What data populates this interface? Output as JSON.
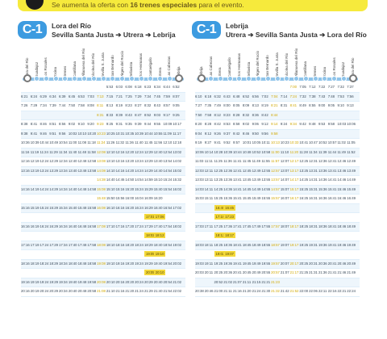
{
  "banner": {
    "pre": "Se aumenta la oferta con",
    "bold": "16 trenes especiales",
    "post": "para el evento."
  },
  "panels": [
    {
      "line": "C-1",
      "origin": "Lora del Río",
      "route": "Sevilla Santa Justa ➔ Utrera ➔ Lebrija",
      "stations": [
        "Lora del Río",
        "Guadajoz",
        "Los Rosales",
        "Tocina",
        "Brenes",
        "Cantillana",
        "Villanueva del Río",
        "Alcolea del Río",
        "Sevilla S. Justa",
        "San Bernardo",
        "Virgen del Rocío",
        "Bellavista",
        "Dos Hermanas",
        "Cantaelgallo",
        "Utrera",
        "Las Cabezas",
        "Lebrija"
      ],
      "rows": [
        [
          "",
          "",
          "",
          "",
          "",
          "",
          "",
          "",
          "",
          "5:53",
          "6:03",
          "6:08",
          "6:18",
          "6:23",
          "6:34",
          "6:44",
          "6:52"
        ],
        [
          "6:21",
          "6:24",
          "6:29",
          "6:34",
          "6:39",
          "6:45",
          "6:53",
          "7:03",
          "7:13",
          "7:15",
          "7:21",
          "7:25",
          "7:29",
          "7:34",
          "7:45",
          "7:59",
          "8:07"
        ],
        [
          "7:26",
          "7:29",
          "7:34",
          "7:39",
          "7:44",
          "7:50",
          "7:58",
          "8:08",
          "8:11",
          "8:13",
          "8:19",
          "8:23",
          "8:27",
          "8:32",
          "8:43",
          "8:57",
          "9:05"
        ],
        [
          "",
          "",
          "",
          "",
          "",
          "",
          "",
          "",
          "8:31",
          "8:33",
          "8:39",
          "8:43",
          "8:47",
          "8:52",
          "9:03",
          "9:17",
          "9:25"
        ],
        [
          "8:38",
          "8:41",
          "8:46",
          "8:51",
          "8:56",
          "9:02",
          "9:10",
          "9:20",
          "9:23",
          "9:25",
          "9:31",
          "9:35",
          "9:39",
          "9:44",
          "9:55",
          "10:09",
          "10:17"
        ],
        [
          "9:38",
          "9:41",
          "9:46",
          "9:51",
          "9:56",
          "10:02",
          "10:10",
          "10:20",
          "10:23",
          "10:25",
          "10:31",
          "10:35",
          "10:39",
          "10:44",
          "10:55",
          "11:09",
          "11:17"
        ],
        [
          "10:36",
          "10:39",
          "10:44",
          "10:49",
          "10:54",
          "11:00",
          "11:08",
          "11:18",
          "11:24",
          "11:26",
          "11:32",
          "11:36",
          "11:40",
          "11:45",
          "11:56",
          "12:10",
          "12:18"
        ],
        [
          "11:16",
          "11:19",
          "11:24",
          "11:29",
          "11:34",
          "11:40",
          "11:48",
          "11:58",
          "12:08",
          "12:10",
          "12:16",
          "12:20",
          "12:24",
          "12:29",
          "12:40",
          "12:54",
          "13:02"
        ],
        [
          "12:16",
          "12:19",
          "12:24",
          "12:29",
          "12:34",
          "12:40",
          "12:48",
          "12:58",
          "13:08",
          "13:10",
          "13:16",
          "13:20",
          "13:24",
          "13:29",
          "13:40",
          "13:54",
          "14:02"
        ],
        [
          "13:16",
          "13:19",
          "13:24",
          "13:29",
          "13:34",
          "13:40",
          "13:48",
          "13:58",
          "14:08",
          "14:10",
          "14:16",
          "14:20",
          "14:24",
          "14:29",
          "14:40",
          "14:54",
          "15:02"
        ],
        [
          "",
          "",
          "",
          "",
          "",
          "",
          "",
          "",
          "14:38",
          "14:40",
          "14:46",
          "14:50",
          "14:54",
          "14:59",
          "15:10",
          "15:24",
          "15:32"
        ],
        [
          "14:16",
          "14:19",
          "14:24",
          "14:29",
          "14:34",
          "14:40",
          "14:48",
          "14:58",
          "15:08",
          "15:10",
          "15:16",
          "15:20",
          "15:24",
          "15:29",
          "15:40",
          "15:54",
          "16:02"
        ],
        [
          "",
          "",
          "",
          "",
          "",
          "",
          "",
          "",
          "15:48",
          "15:50",
          "15:56",
          "16:00",
          "16:04",
          "16:09",
          "16:20",
          "",
          ""
        ],
        [
          "15:16",
          "15:19",
          "15:24",
          "15:29",
          "15:34",
          "15:40",
          "15:48",
          "15:58",
          "16:08",
          "16:10",
          "16:16",
          "16:20",
          "16:24",
          "16:29",
          "16:40",
          "16:54",
          "17:02"
        ],
        [
          "",
          "",
          "",
          "",
          "",
          "",
          "",
          "",
          "",
          "",
          "",
          "",
          "",
          "17:01",
          "17:06",
          "",
          ""
        ],
        [
          "16:16",
          "16:19",
          "16:24",
          "16:29",
          "16:34",
          "16:40",
          "16:48",
          "16:58",
          "17:08",
          "17:10",
          "17:16",
          "17:20",
          "17:24",
          "17:29",
          "17:40",
          "17:54",
          "18:02"
        ],
        [
          "",
          "",
          "",
          "",
          "",
          "",
          "",
          "",
          "",
          "",
          "",
          "",
          "",
          "18:02",
          "18:12",
          "",
          ""
        ],
        [
          "17:16",
          "17:19",
          "17:24",
          "17:29",
          "17:34",
          "17:40",
          "17:48",
          "17:58",
          "18:08",
          "18:10",
          "18:16",
          "18:20",
          "18:24",
          "18:29",
          "18:40",
          "18:54",
          "19:02"
        ],
        [
          "",
          "",
          "",
          "",
          "",
          "",
          "",
          "",
          "",
          "",
          "",
          "",
          "",
          "19:05",
          "19:10",
          "",
          ""
        ],
        [
          "18:16",
          "18:19",
          "18:24",
          "18:29",
          "18:34",
          "18:40",
          "18:48",
          "18:58",
          "19:08",
          "19:10",
          "19:16",
          "19:20",
          "19:24",
          "19:29",
          "19:40",
          "19:54",
          "20:02"
        ],
        [
          "",
          "",
          "",
          "",
          "",
          "",
          "",
          "",
          "",
          "",
          "",
          "",
          "",
          "20:05",
          "20:10",
          "",
          ""
        ],
        [
          "19:16",
          "19:19",
          "19:24",
          "19:29",
          "19:34",
          "19:40",
          "19:48",
          "19:58",
          "20:08",
          "20:10",
          "20:16",
          "20:20",
          "20:24",
          "20:29",
          "20:40",
          "20:54",
          "21:02"
        ],
        [
          "20:16",
          "20:19",
          "20:24",
          "20:29",
          "20:34",
          "20:40",
          "20:48",
          "20:58",
          "21:08",
          "21:10",
          "21:16",
          "21:20",
          "21:24",
          "21:29",
          "21:40",
          "21:54",
          "22:02"
        ]
      ]
    },
    {
      "line": "C-1",
      "origin": "Lebrija",
      "route": "Utrera ➔ Sevilla Santa Justa ➔ Lora del Río",
      "stations": [
        "Lebrija",
        "Las Cabezas",
        "Utrera",
        "Cantaelgallo",
        "Dos Hermanas",
        "Bellavista",
        "Virgen del Rocío",
        "San Bernardo",
        "Sevilla S. Justa",
        "Alcolea del Río",
        "Villanueva del Río",
        "Cantillana",
        "Brenes",
        "Tocina",
        "Los Rosales",
        "Guadajoz",
        "Lora del Río"
      ],
      "rows": [
        [
          "",
          "",
          "",
          "",
          "",
          "",
          "",
          "",
          "",
          "",
          "7:00",
          "7:05",
          "7:12",
          "7:22",
          "7:27",
          "7:32",
          "7:37"
        ],
        [
          "6:10",
          "6:18",
          "6:32",
          "6:43",
          "6:48",
          "6:52",
          "6:56",
          "7:02",
          "7:04",
          "7:14",
          "7:24",
          "7:32",
          "7:38",
          "7:43",
          "7:48",
          "7:53",
          "7:56"
        ],
        [
          "7:27",
          "7:35",
          "7:49",
          "8:00",
          "8:05",
          "8:09",
          "8:13",
          "8:19",
          "8:21",
          "8:31",
          "8:41",
          "8:49",
          "8:55",
          "9:00",
          "9:05",
          "9:10",
          "9:13"
        ],
        [
          "7:50",
          "7:58",
          "8:12",
          "8:23",
          "8:28",
          "8:32",
          "8:36",
          "8:42",
          "8:44",
          "",
          "",
          "",
          "",
          "",
          "",
          "",
          ""
        ],
        [
          "8:20",
          "8:28",
          "8:42",
          "8:53",
          "8:58",
          "9:02",
          "9:06",
          "9:12",
          "9:14",
          "9:24",
          "9:34",
          "9:42",
          "9:48",
          "9:53",
          "9:58",
          "10:03",
          "10:06"
        ],
        [
          "9:04",
          "9:12",
          "9:26",
          "9:37",
          "9:42",
          "9:46",
          "9:50",
          "9:56",
          "9:58",
          "",
          "",
          "",
          "",
          "",
          "",
          "",
          ""
        ],
        [
          "9:19",
          "9:27",
          "9:41",
          "9:52",
          "9:57",
          "10:01",
          "10:05",
          "10:11",
          "10:13",
          "10:23",
          "10:33",
          "10:41",
          "10:47",
          "10:52",
          "10:57",
          "11:02",
          "11:05"
        ],
        [
          "10:06",
          "10:14",
          "10:28",
          "10:39",
          "10:44",
          "10:48",
          "10:52",
          "10:58",
          "11:00",
          "11:10",
          "11:20",
          "11:28",
          "11:34",
          "11:39",
          "11:44",
          "11:49",
          "11:52"
        ],
        [
          "11:03",
          "11:11",
          "11:25",
          "11:36",
          "11:41",
          "11:45",
          "11:49",
          "11:55",
          "11:57",
          "12:07",
          "12:17",
          "12:25",
          "12:31",
          "12:36",
          "12:41",
          "12:46",
          "12:49"
        ],
        [
          "12:03",
          "12:11",
          "12:25",
          "12:36",
          "12:41",
          "12:45",
          "12:49",
          "12:55",
          "12:57",
          "13:07",
          "13:17",
          "13:25",
          "13:31",
          "13:36",
          "13:41",
          "13:46",
          "13:49"
        ],
        [
          "13:03",
          "13:11",
          "13:25",
          "13:36",
          "13:41",
          "13:45",
          "13:49",
          "13:55",
          "13:57",
          "14:07",
          "14:17",
          "14:25",
          "14:31",
          "14:36",
          "14:41",
          "14:46",
          "14:49"
        ],
        [
          "14:03",
          "14:11",
          "14:25",
          "14:36",
          "14:41",
          "14:45",
          "14:49",
          "14:55",
          "14:57",
          "15:07",
          "15:17",
          "15:25",
          "15:31",
          "15:36",
          "15:41",
          "15:46",
          "15:49"
        ],
        [
          "15:03",
          "15:11",
          "15:25",
          "15:36",
          "15:41",
          "15:45",
          "15:49",
          "15:55",
          "15:57",
          "16:07",
          "16:17",
          "16:25",
          "16:31",
          "16:36",
          "16:41",
          "16:46",
          "16:49"
        ],
        [
          "",
          "",
          "16:40",
          "16:45",
          "",
          "",
          "",
          "",
          "",
          "",
          "",
          "",
          "",
          "",
          "",
          "",
          ""
        ],
        [
          "",
          "",
          "17:18",
          "17:23",
          "",
          "",
          "",
          "",
          "",
          "",
          "",
          "",
          "",
          "",
          "",
          "",
          ""
        ],
        [
          "17:03",
          "17:11",
          "17:25",
          "17:36",
          "17:41",
          "17:45",
          "17:49",
          "17:55",
          "17:57",
          "18:07",
          "18:17",
          "18:25",
          "18:31",
          "18:36",
          "18:41",
          "18:46",
          "18:49"
        ],
        [
          "",
          "",
          "18:12",
          "18:17",
          "",
          "",
          "",
          "",
          "",
          "",
          "",
          "",
          "",
          "",
          "",
          "",
          ""
        ],
        [
          "18:03",
          "18:11",
          "18:25",
          "18:36",
          "18:41",
          "18:45",
          "18:49",
          "18:55",
          "18:57",
          "19:07",
          "19:17",
          "19:25",
          "19:31",
          "19:36",
          "19:41",
          "19:46",
          "19:49"
        ],
        [
          "",
          "",
          "19:02",
          "19:07",
          "",
          "",
          "",
          "",
          "",
          "",
          "",
          "",
          "",
          "",
          "",
          "",
          ""
        ],
        [
          "19:03",
          "19:11",
          "19:25",
          "19:36",
          "19:41",
          "19:45",
          "19:49",
          "19:55",
          "19:57",
          "20:07",
          "20:17",
          "20:25",
          "20:31",
          "20:36",
          "20:41",
          "20:46",
          "20:49"
        ],
        [
          "20:03",
          "20:11",
          "20:25",
          "20:36",
          "20:41",
          "20:45",
          "20:49",
          "20:55",
          "20:57",
          "21:07",
          "21:17",
          "21:25",
          "21:31",
          "21:36",
          "21:41",
          "21:46",
          "21:49"
        ],
        [
          "",
          "",
          "20:52",
          "21:02",
          "21:07",
          "21:11",
          "21:15",
          "21:21",
          "21:23",
          "",
          "",
          "",
          "",
          "",
          "",
          "",
          ""
        ],
        [
          "20:38",
          "20:46",
          "21:00",
          "21:11",
          "21:16",
          "21:20",
          "21:24",
          "21:30",
          "21:32",
          "21:42",
          "21:52",
          "22:00",
          "22:06",
          "22:11",
          "22:16",
          "22:21",
          "22:24"
        ]
      ]
    }
  ],
  "colors": {
    "accent": "#3d9be0",
    "banner": "#f6ea3c",
    "highlight": "#f4d93a"
  }
}
